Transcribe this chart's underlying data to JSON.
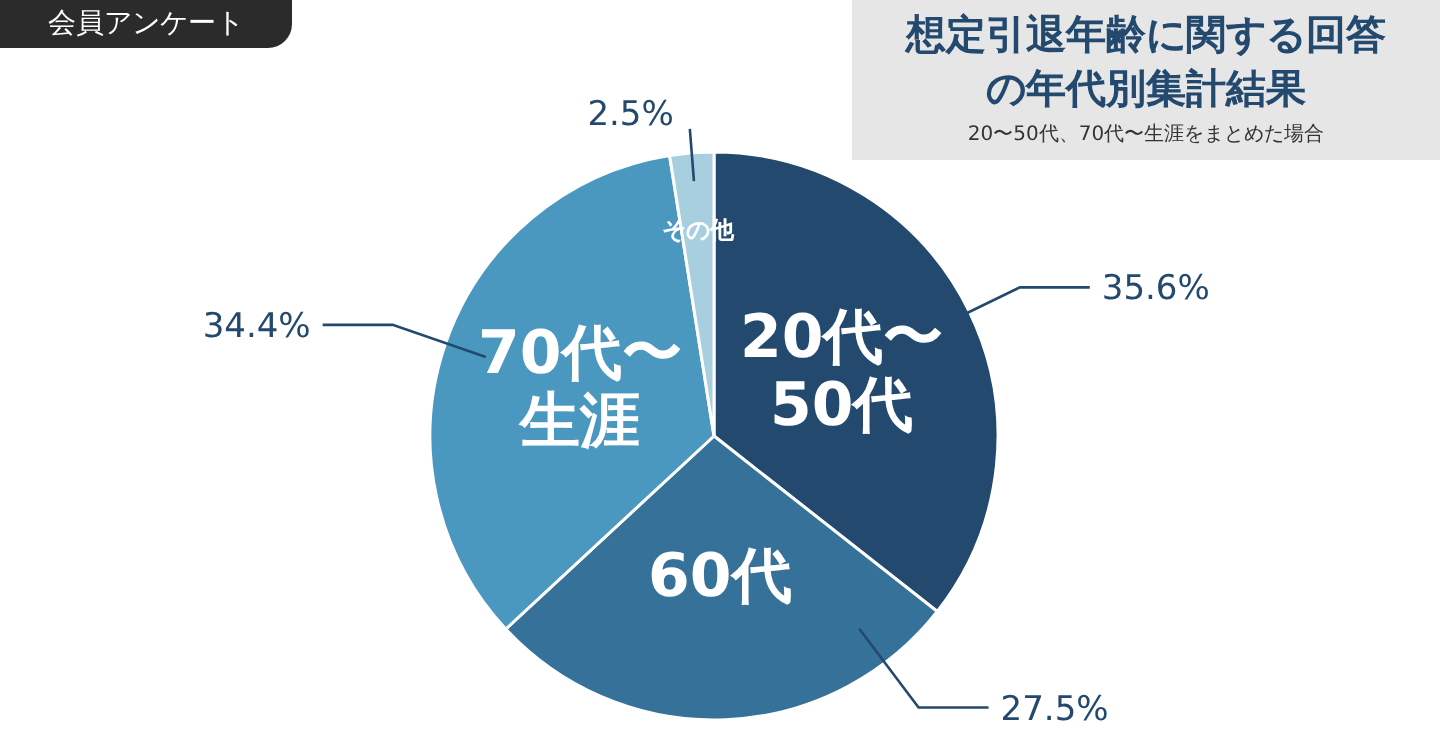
{
  "chart_data": {
    "type": "pie",
    "title": "想定引退年齢に関する回答の年代別集計結果",
    "subtitle": "20〜50代、70代〜生涯をまとめた場合",
    "annotations": [
      "会員アンケート"
    ],
    "categories": [
      "20代〜50代",
      "60代",
      "70代〜生涯",
      "その他"
    ],
    "values": [
      35.6,
      27.5,
      34.4,
      2.5
    ],
    "value_labels": [
      "35.6%",
      "27.5%",
      "34.4%",
      "2.5%"
    ],
    "colors": [
      "#23496e",
      "#36719a",
      "#4a97c0",
      "#a8cfe0"
    ],
    "legend": false
  }
}
